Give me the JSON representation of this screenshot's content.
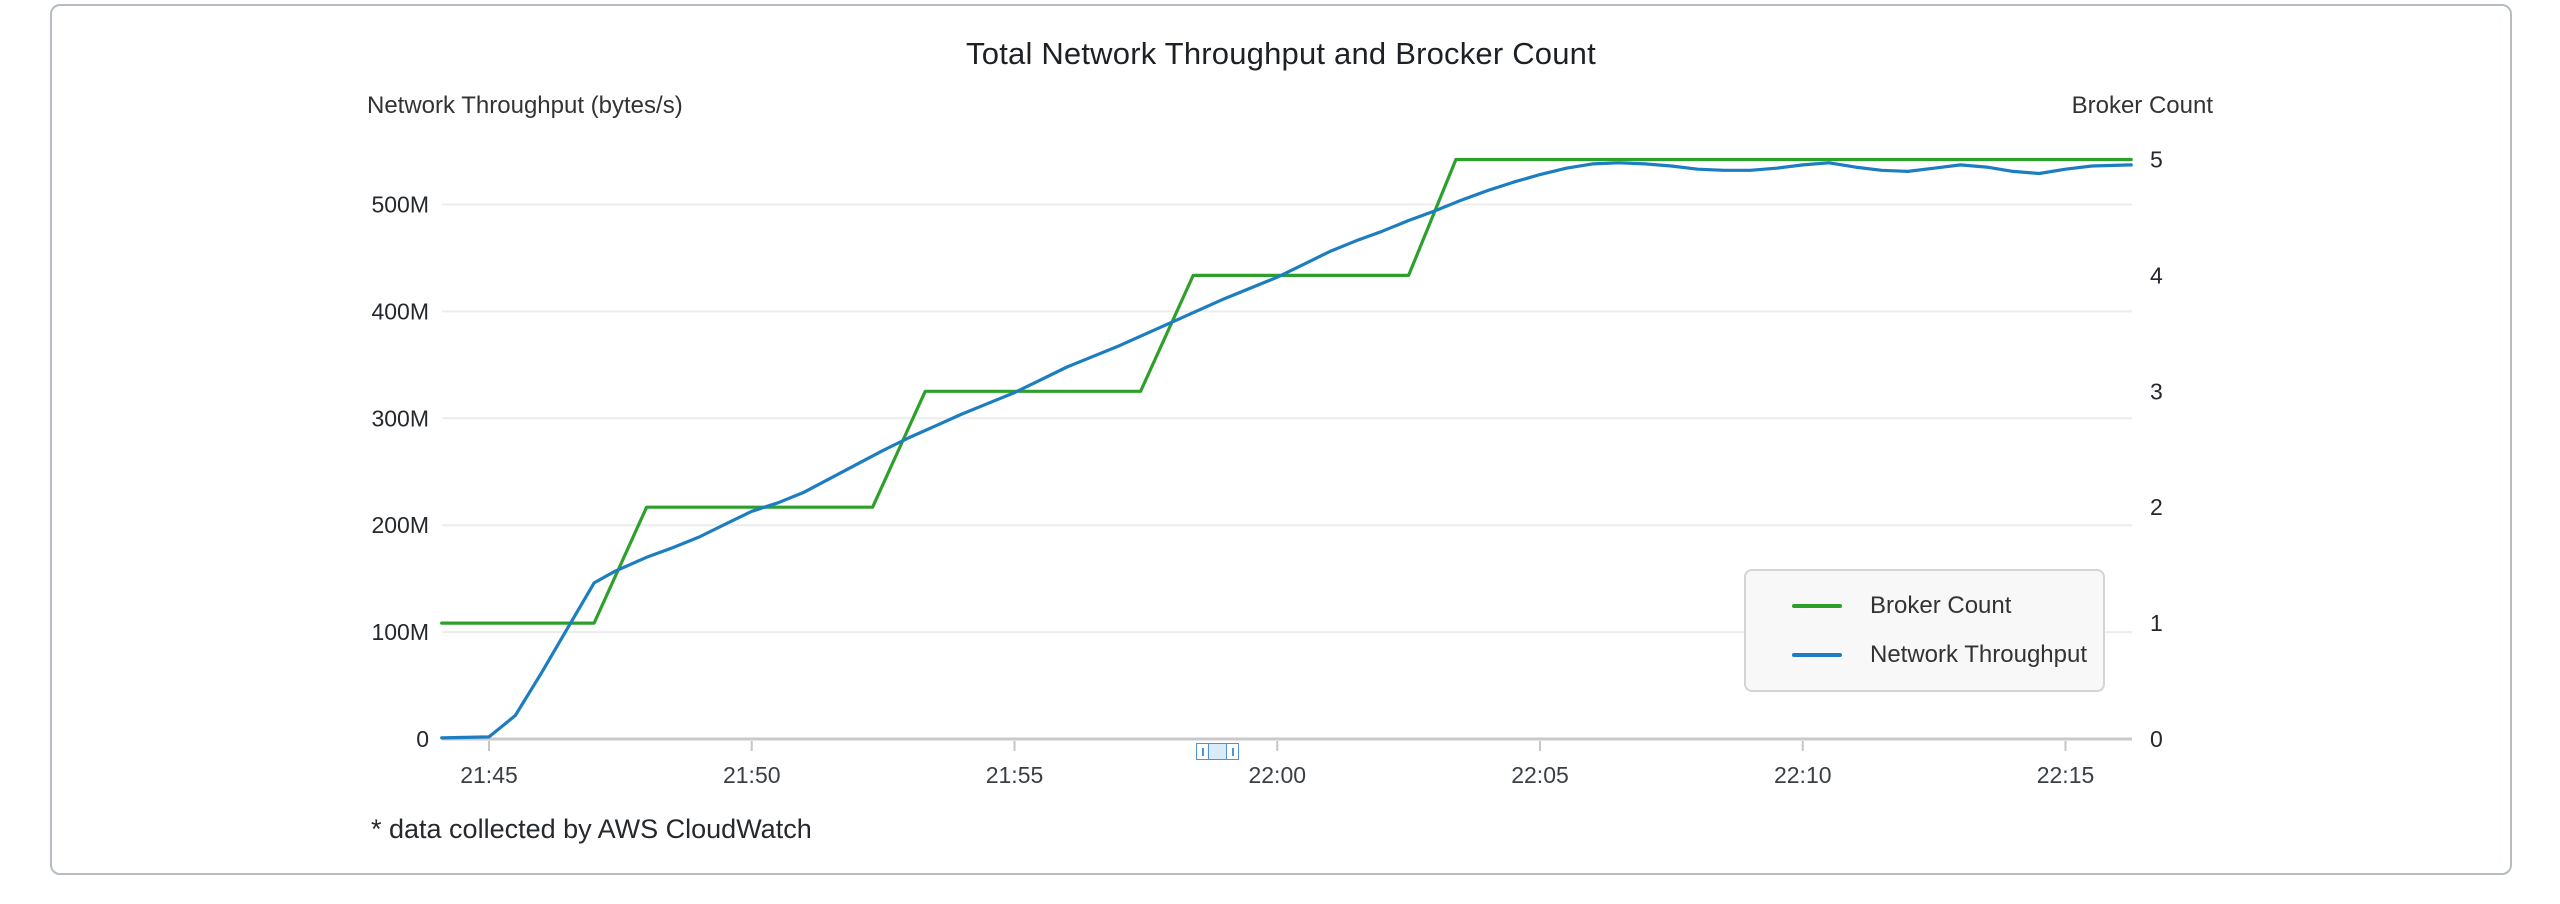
{
  "chart_data": {
    "type": "line",
    "title": "Total Network Throughput and Brocker Count",
    "footnote": "* data collected by AWS CloudWatch",
    "grid": "horizontal-only",
    "x_axis": {
      "unit": "time (HH:MM)",
      "tick_labels": [
        "21:45",
        "21:50",
        "21:55",
        "22:00",
        "22:05",
        "22:10",
        "22:15"
      ],
      "tick_minutes": [
        0,
        5,
        10,
        15,
        20,
        25,
        30
      ],
      "t_unit": "minutes since 21:45",
      "min_minutes": -0.9,
      "max_minutes": 31.25
    },
    "left_axis": {
      "title": "Network Throughput (bytes/s)",
      "tick_labels": [
        "0",
        "100M",
        "200M",
        "300M",
        "400M",
        "500M"
      ],
      "tick_values": [
        0,
        100,
        200,
        300,
        400,
        500
      ],
      "values_unit": "millions of bytes/s (M)"
    },
    "right_axis": {
      "title": "Broker Count",
      "tick_labels": [
        "0",
        "1",
        "2",
        "3",
        "4",
        "5"
      ],
      "tick_values": [
        0,
        1,
        2,
        3,
        4,
        5
      ]
    },
    "legend": {
      "position": "inside-right-bottom",
      "items": [
        "Broker Count",
        "Network Throughput"
      ]
    },
    "series": [
      {
        "name": "Broker Count",
        "axis": "right",
        "color": "#2da02c",
        "points": [
          [
            -0.9,
            1
          ],
          [
            2,
            1
          ],
          [
            3,
            2
          ],
          [
            7.3,
            2
          ],
          [
            8.3,
            3
          ],
          [
            12.4,
            3
          ],
          [
            13.4,
            4
          ],
          [
            17.5,
            4
          ],
          [
            18.4,
            5
          ],
          [
            31.25,
            5
          ]
        ]
      },
      {
        "name": "Network Throughput",
        "axis": "left",
        "color": "#1c7dc0",
        "points": [
          [
            -0.9,
            1
          ],
          [
            0,
            2
          ],
          [
            0.5,
            22
          ],
          [
            1,
            62
          ],
          [
            1.5,
            104
          ],
          [
            2,
            146
          ],
          [
            2.4,
            157
          ],
          [
            3,
            170
          ],
          [
            3.5,
            179
          ],
          [
            4,
            189
          ],
          [
            4.5,
            201
          ],
          [
            5,
            213
          ],
          [
            5.5,
            221
          ],
          [
            6,
            231
          ],
          [
            6.5,
            244
          ],
          [
            7,
            257
          ],
          [
            7.5,
            270
          ],
          [
            8,
            282
          ],
          [
            8.5,
            293
          ],
          [
            9,
            304
          ],
          [
            9.5,
            314
          ],
          [
            10,
            324
          ],
          [
            10.5,
            336
          ],
          [
            11,
            348
          ],
          [
            11.5,
            358
          ],
          [
            12,
            368
          ],
          [
            12.5,
            379
          ],
          [
            13,
            390
          ],
          [
            13.5,
            401
          ],
          [
            14,
            412
          ],
          [
            14.5,
            422
          ],
          [
            15,
            432
          ],
          [
            15.5,
            444
          ],
          [
            16,
            456
          ],
          [
            16.5,
            466
          ],
          [
            17,
            475
          ],
          [
            17.5,
            485
          ],
          [
            18,
            494
          ],
          [
            18.5,
            504
          ],
          [
            19,
            513
          ],
          [
            19.5,
            521
          ],
          [
            20,
            528
          ],
          [
            20.5,
            534
          ],
          [
            21,
            538
          ],
          [
            21.5,
            539
          ],
          [
            22,
            538
          ],
          [
            22.5,
            536
          ],
          [
            23,
            533
          ],
          [
            23.5,
            532
          ],
          [
            24,
            532
          ],
          [
            24.5,
            534
          ],
          [
            25,
            537
          ],
          [
            25.5,
            539
          ],
          [
            26,
            535
          ],
          [
            26.5,
            532
          ],
          [
            27,
            531
          ],
          [
            27.5,
            534
          ],
          [
            28,
            537
          ],
          [
            28.5,
            535
          ],
          [
            29,
            531
          ],
          [
            29.5,
            529
          ],
          [
            30,
            533
          ],
          [
            30.5,
            536
          ],
          [
            31.25,
            537
          ]
        ]
      }
    ]
  },
  "scrubber": {
    "type": "mini-range-slider",
    "handle_count": 2
  }
}
